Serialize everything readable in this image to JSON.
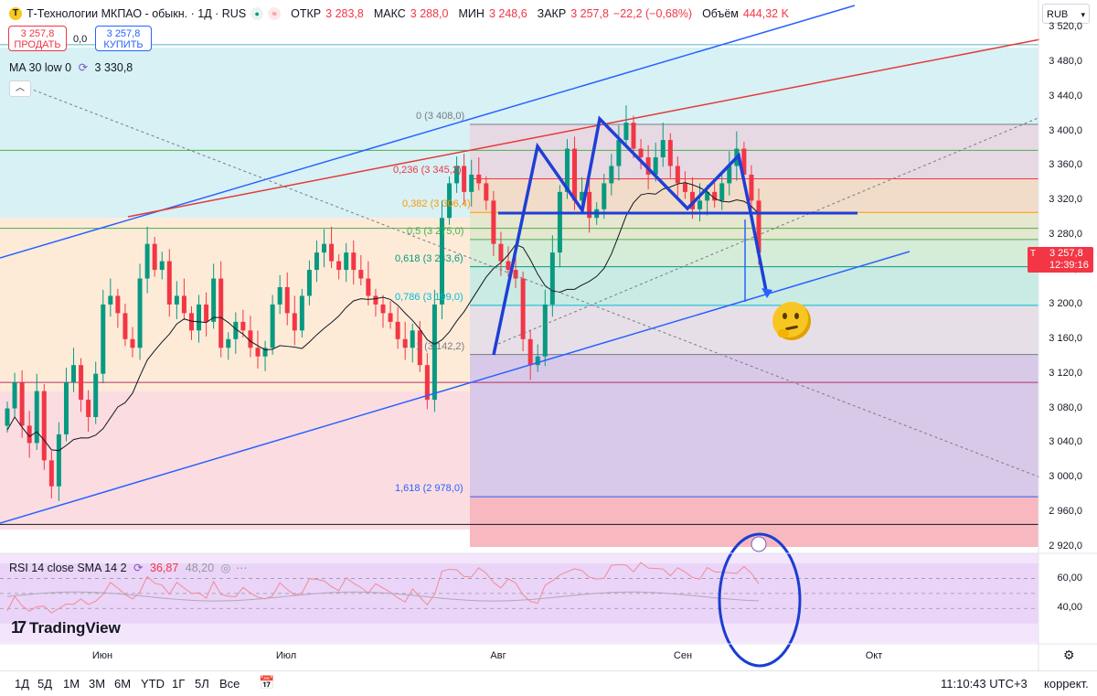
{
  "header": {
    "symbol_title": "Т-Технологии МКПАО - обыкн. · 1Д · RUS",
    "logo_letter": "T",
    "open_label": "ОТКР",
    "open_value": "3 283,8",
    "high_label": "МАКС",
    "high_value": "3 288,0",
    "low_label": "МИН",
    "low_value": "3 248,6",
    "close_label": "ЗАКР",
    "close_value": "3 257,8",
    "change": "−22,2 (−0,68%)",
    "volume_label": "Объём",
    "volume_value": "444,32 K"
  },
  "trade": {
    "sell_price": "3 257,8",
    "sell_label": "ПРОДАТЬ",
    "spread": "0,0",
    "buy_price": "3 257,8",
    "buy_label": "КУПИТЬ"
  },
  "indicators": {
    "ma_label": "MA 30 low 0",
    "ma_value": "3 330,8",
    "rsi_label": "RSI 14 close SMA 14 2",
    "rsi_value": "36,87",
    "rsi_sma_value": "48,20"
  },
  "price_axis": {
    "currency": "RUB",
    "ticks": [
      "3 520,0",
      "3 480,0",
      "3 440,0",
      "3 400,0",
      "3 360,0",
      "3 320,0",
      "3 280,0",
      "3 240,0",
      "3 200,0",
      "3 160,0",
      "3 120,0",
      "3 080,0",
      "3 040,0",
      "3 000,0",
      "2 960,0",
      "2 920,0"
    ],
    "last_price": "3 257,8",
    "countdown": "12:39:16",
    "last_price_marker": "T"
  },
  "rsi_axis": {
    "ticks": [
      "60,00",
      "40,00"
    ]
  },
  "time_axis": {
    "ticks": [
      "Июн",
      "Июл",
      "Авг",
      "Сен",
      "Окт"
    ]
  },
  "fib": [
    {
      "level": "0 (3 408,0)",
      "color": "#787b86"
    },
    {
      "level": "0,236 (3 345,2)",
      "color": "#f23645"
    },
    {
      "level": "0,382 (3 306,4)",
      "color": "#ff9800"
    },
    {
      "level": "0,5 (3 275,0)",
      "color": "#4caf50"
    },
    {
      "level": "0,618 (3 243,6)",
      "color": "#089981"
    },
    {
      "level": "0,786 (3 199,0)",
      "color": "#00bcd4"
    },
    {
      "level": "1 (3 142,2)",
      "color": "#787b86"
    },
    {
      "level": "1,618 (2 978,0)",
      "color": "#2962ff"
    }
  ],
  "bottom_bar": {
    "timeframes": [
      "1Д",
      "5Д",
      "1М",
      "3М",
      "6М",
      "YTD",
      "1Г",
      "5Л",
      "Все"
    ],
    "clock": "11:10:43 UTC+3",
    "adjust_label": "коррект."
  },
  "branding": {
    "logo_text": "TradingView"
  },
  "colors": {
    "up": "#089981",
    "down": "#f23645",
    "channel_blue": "#2962ff",
    "channel_red": "#e53935",
    "pattern_blue": "#1e3fd6"
  },
  "chart_data": {
    "type": "candlestick",
    "title": "Т-Технологии МКПАО - обыкн. · 1Д · RUS",
    "y_range": [
      2912,
      3528
    ],
    "x_labels": [
      "Июн",
      "Июл",
      "Авг",
      "Сен",
      "Окт"
    ],
    "grid": false,
    "candles_close": [
      3080,
      3110,
      3060,
      3040,
      3100,
      3020,
      2990,
      3050,
      3110,
      3130,
      3090,
      3070,
      3120,
      3200,
      3210,
      3190,
      3160,
      3150,
      3230,
      3270,
      3240,
      3250,
      3200,
      3210,
      3190,
      3170,
      3200,
      3180,
      3230,
      3150,
      3160,
      3180,
      3170,
      3150,
      3140,
      3150,
      3200,
      3220,
      3190,
      3170,
      3210,
      3240,
      3260,
      3270,
      3250,
      3240,
      3260,
      3240,
      3230,
      3210,
      3200,
      3190,
      3180,
      3160,
      3150,
      3170,
      3130,
      3090,
      3200,
      3300,
      3340,
      3360,
      3330,
      3350,
      3340,
      3320,
      3270,
      3250,
      3240,
      3230,
      3160,
      3130,
      3140,
      3200,
      3260,
      3330,
      3380,
      3320,
      3330,
      3300,
      3310,
      3340,
      3360,
      3390,
      3410,
      3380,
      3370,
      3350,
      3370,
      3390,
      3360,
      3340,
      3330,
      3310,
      3320,
      3330,
      3320,
      3340,
      3360,
      3380,
      3350,
      3320,
      3260
    ],
    "ma30_last": 3330.8,
    "last_close": 3257.8,
    "fib_levels": [
      {
        "ratio": 0,
        "price": 3408.0
      },
      {
        "ratio": 0.236,
        "price": 3345.2
      },
      {
        "ratio": 0.382,
        "price": 3306.4
      },
      {
        "ratio": 0.5,
        "price": 3275.0
      },
      {
        "ratio": 0.618,
        "price": 3243.6
      },
      {
        "ratio": 0.786,
        "price": 3199.0
      },
      {
        "ratio": 1,
        "price": 3142.2
      },
      {
        "ratio": 1.618,
        "price": 2978.0
      }
    ],
    "rsi": {
      "value": 36.87,
      "sma": 48.2,
      "ticks": [
        60,
        40
      ]
    }
  }
}
